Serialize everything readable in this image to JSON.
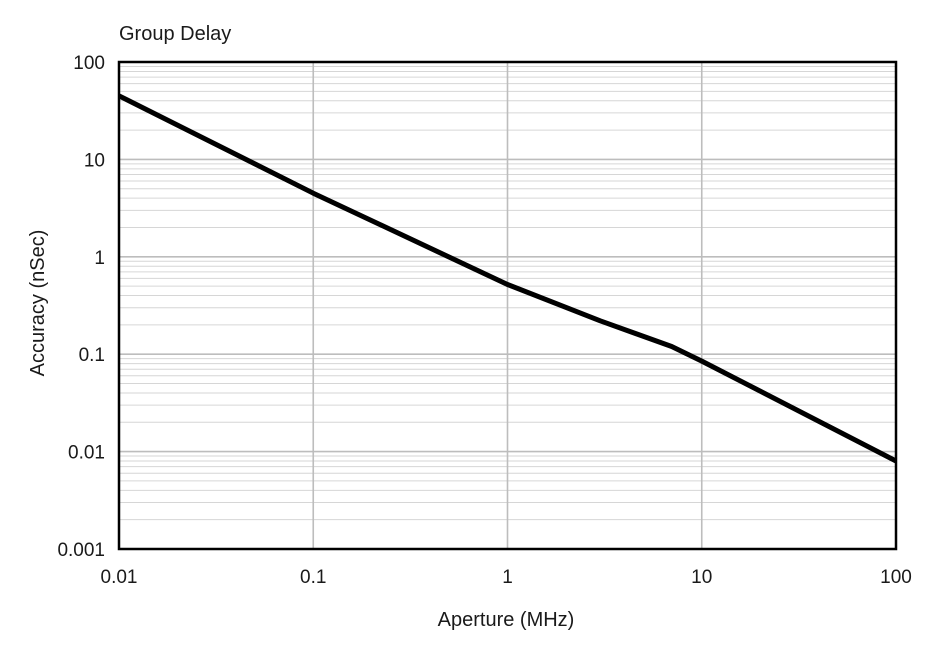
{
  "chart_data": {
    "type": "line",
    "title": "Group Delay",
    "xlabel": "Aperture (MHz)",
    "ylabel": "Accuracy (nSec)",
    "x_scale": "log",
    "y_scale": "log",
    "xlim": [
      0.01,
      100
    ],
    "ylim": [
      0.001,
      100
    ],
    "x_ticks": [
      "0.01",
      "0.1",
      "1",
      "10",
      "100"
    ],
    "y_ticks": [
      "100",
      "10",
      "1",
      "0.1",
      "0.01",
      "0.001"
    ],
    "grid": true,
    "legend": "none",
    "line_color": "#000000",
    "grid_color": "#bdbdbd",
    "series": [
      {
        "x": [
          0.01,
          0.1,
          1,
          3,
          7,
          10,
          100
        ],
        "y": [
          45,
          4.5,
          0.52,
          0.22,
          0.12,
          0.085,
          0.008
        ]
      }
    ]
  }
}
